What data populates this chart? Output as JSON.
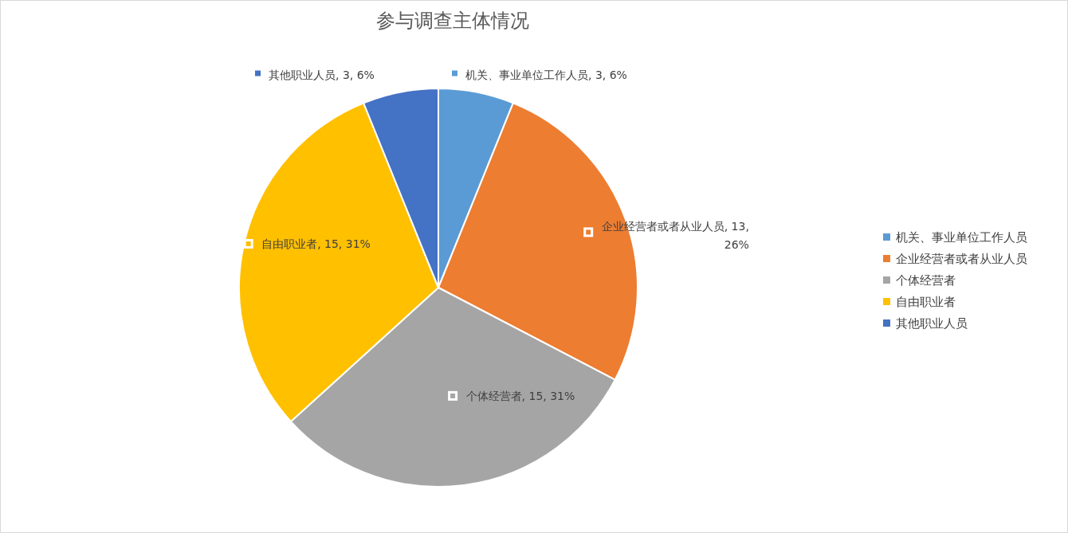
{
  "chart_data": {
    "type": "pie",
    "title": "参与调查主体情况",
    "categories": [
      "机关、事业单位工作人员",
      "企业经营者或者从业人员",
      "个体经营者",
      "自由职业者",
      "其他职业人员"
    ],
    "values": [
      3,
      13,
      15,
      15,
      3
    ],
    "value_labels": [
      "机关、事业单位工作人员, 3, 6%",
      "企业经营者或者从业人员, 13, 26%",
      "个体经营者, 15, 31%",
      "自由职业者, 15, 31%",
      "其他职业人员, 3, 6%"
    ],
    "colors": [
      "#5b9bd5",
      "#ed7d31",
      "#a5a5a5",
      "#ffc000",
      "#4472c4"
    ],
    "legend": "right"
  }
}
